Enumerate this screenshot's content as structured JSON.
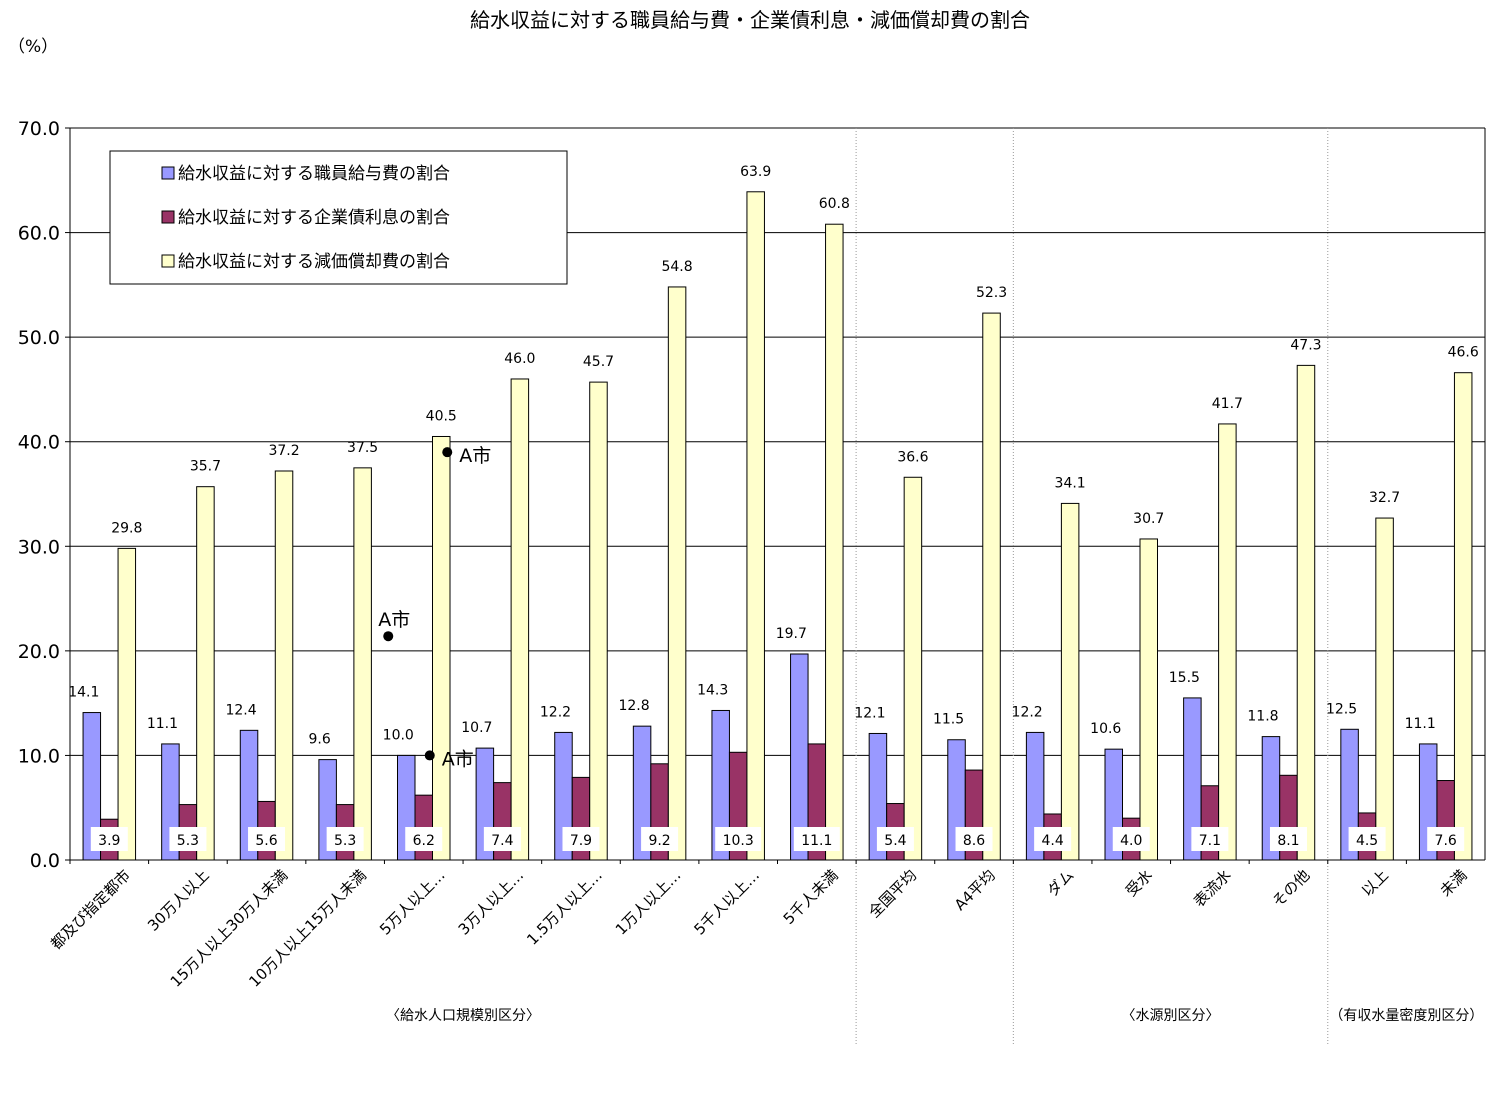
{
  "chart_data": {
    "type": "bar",
    "title": "給水収益に対する職員給与費・企業債利息・減価償却費の割合",
    "ylabel": "（%）",
    "ylim": [
      0,
      70
    ],
    "yticks": [
      "0.0",
      "10.0",
      "20.0",
      "30.0",
      "40.0",
      "50.0",
      "60.0",
      "70.0"
    ],
    "grid": true,
    "legend_position": "top-left",
    "categories": [
      "都及び指定都市",
      "30万人以上",
      "15万人以上30万人未満",
      "10万人以上15万人未満",
      "5万人以上…",
      "3万人以上…",
      "1.5万人以上…",
      "1万人以上…",
      "5千人以上…",
      "5千人未満",
      "全国平均",
      "A4平均",
      "ダム",
      "受水",
      "表流水",
      "その他",
      "以上",
      "未満"
    ],
    "series": [
      {
        "name": "給水収益に対する職員給与費の割合",
        "color": "#9999ff",
        "values": [
          14.1,
          11.1,
          12.4,
          9.6,
          10.0,
          10.7,
          12.2,
          12.8,
          14.3,
          19.7,
          12.1,
          11.5,
          12.2,
          10.6,
          15.5,
          11.8,
          12.5,
          11.1
        ],
        "labels": [
          "14.1",
          "11.1",
          "12.4",
          "9.6",
          "10.0",
          "10.7",
          "12.2",
          "12.8",
          "14.3",
          "19.7",
          "12.1",
          "11.5",
          "12.2",
          "10.6",
          "15.5",
          "11.8",
          "12.5",
          "11.1"
        ]
      },
      {
        "name": "給水収益に対する企業債利息の割合",
        "color": "#993366",
        "values": [
          3.9,
          5.3,
          5.6,
          5.3,
          6.2,
          7.4,
          7.9,
          9.2,
          10.3,
          11.1,
          5.4,
          8.6,
          4.4,
          4.0,
          7.1,
          8.1,
          4.5,
          7.6
        ],
        "labels": [
          "3.9",
          "5.3",
          "5.6",
          "5.3",
          "6.2",
          "7.4",
          "7.9",
          "9.2",
          "10.3",
          "11.1",
          "5.4",
          "8.6",
          "4.4",
          "4.0",
          "7.1",
          "8.1",
          "4.5",
          "7.6"
        ]
      },
      {
        "name": "給水収益に対する減価償却費の割合",
        "color": "#ffffcc",
        "values": [
          29.8,
          35.7,
          37.2,
          37.5,
          40.5,
          46.0,
          45.7,
          54.8,
          63.9,
          60.8,
          36.6,
          52.3,
          34.1,
          30.7,
          41.7,
          47.3,
          32.7,
          46.6
        ],
        "labels": [
          "29.8",
          "35.7",
          "37.2",
          "37.5",
          "40.5",
          "46.0",
          "45.7",
          "54.8",
          "63.9",
          "60.8",
          "36.6",
          "52.3",
          "34.1",
          "30.7",
          "41.7",
          "47.3",
          "32.7",
          "46.6"
        ]
      }
    ],
    "group_labels": [
      "〈給水人口規模別区分〉",
      "〈水源別区分〉",
      "（有収水量密度別区分）"
    ],
    "annotations": [
      {
        "label": "A市",
        "category_index": 4,
        "series_index": 0,
        "value": 21.4
      },
      {
        "label": "A市",
        "category_index": 4,
        "series_index": 1,
        "value": 10.0
      },
      {
        "label": "A市",
        "category_index": 4,
        "series_index": 2,
        "value": 39.0
      }
    ]
  }
}
